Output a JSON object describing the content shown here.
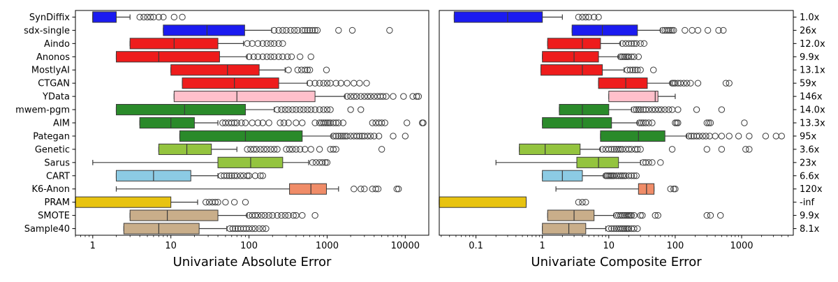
{
  "chart_data": [
    {
      "type": "box",
      "orientation": "horizontal",
      "xscale": "log",
      "xlim": [
        0.6,
        20000
      ],
      "xticks": [
        1,
        10,
        100,
        1000,
        10000
      ],
      "xticklabels": [
        "1",
        "10",
        "100",
        "1000",
        "10000"
      ],
      "xlabel": "Univariate Absolute Error",
      "grid": false,
      "categories": [
        "SynDiffix",
        "sdx-single",
        "Aindo",
        "Anonos",
        "MostlyAI",
        "CTGAN",
        "YData",
        "mwem-pgm",
        "AIM",
        "Pategan",
        "Genetic",
        "Sarus",
        "CART",
        "K6-Anon",
        "PRAM",
        "SMOTE",
        "Sample40"
      ],
      "colors": [
        "#1b1bf0",
        "#1b1bf0",
        "#ee1c1c",
        "#ee1c1c",
        "#ee1c1c",
        "#ee1c1c",
        "#ffc0cb",
        "#2a8a2a",
        "#2a8a2a",
        "#2a8a2a",
        "#94c43f",
        "#94c43f",
        "#8ccbe4",
        "#f08c68",
        "#e8c310",
        "#c9ae8a",
        "#c9ae8a"
      ],
      "boxes": [
        {
          "whisker_low": 1,
          "q1": 1,
          "median": 1,
          "q3": 2,
          "whisker_high": 3,
          "outliers": [
            4,
            4.5,
            5,
            5.5,
            6,
            7,
            8,
            11,
            14
          ]
        },
        {
          "whisker_low": 8,
          "q1": 8,
          "median": 29,
          "q3": 88,
          "whisker_high": 195,
          "outliers": [
            210,
            240,
            270,
            300,
            340,
            380,
            420,
            480,
            520,
            560,
            600,
            650,
            700,
            750,
            1400,
            2100,
            6300
          ]
        },
        {
          "whisker_low": 3,
          "q1": 3,
          "median": 11,
          "q3": 40,
          "whisker_high": 85,
          "outliers": [
            95,
            110,
            130,
            150,
            170,
            190,
            210,
            240,
            270
          ]
        },
        {
          "whisker_low": 2,
          "q1": 2,
          "median": 7,
          "q3": 42,
          "whisker_high": 95,
          "outliers": [
            100,
            115,
            130,
            150,
            170,
            190,
            210,
            240,
            270,
            310,
            350,
            450,
            620
          ]
        },
        {
          "whisker_low": 10,
          "q1": 10,
          "median": 53,
          "q3": 135,
          "whisker_high": 290,
          "outliers": [
            320,
            420,
            470,
            520,
            560,
            600,
            980
          ]
        },
        {
          "whisker_low": 14,
          "q1": 14,
          "median": 65,
          "q3": 240,
          "whisker_high": 560,
          "outliers": [
            600,
            700,
            800,
            900,
            1000,
            1100,
            1300,
            1500,
            1800,
            2200,
            2600,
            3200
          ]
        },
        {
          "whisker_low": 11,
          "q1": 11,
          "median": 70,
          "q3": 700,
          "whisker_high": 1700,
          "outliers": [
            1800,
            2000,
            2200,
            2400,
            2700,
            3000,
            3300,
            3600,
            4000,
            4400,
            4800,
            5200,
            5700,
            7000,
            9500,
            12500,
            14000,
            14800
          ]
        },
        {
          "whisker_low": 2,
          "q1": 2,
          "median": 15,
          "q3": 90,
          "whisker_high": 210,
          "outliers": [
            230,
            260,
            290,
            320,
            360,
            400,
            450,
            500,
            560,
            620,
            700,
            800,
            900,
            1000,
            1100,
            2000,
            2700
          ]
        },
        {
          "whisker_low": 4,
          "q1": 4,
          "median": 10,
          "q3": 20,
          "whisker_high": 40,
          "outliers": [
            46,
            50,
            55,
            60,
            65,
            70,
            80,
            90,
            110,
            130,
            150,
            180,
            250,
            280,
            320,
            400,
            480,
            700,
            800,
            850,
            900,
            950,
            1000,
            1050,
            1100,
            1200,
            1300,
            1400,
            1600,
            3800,
            4200,
            4600,
            5000,
            5500,
            10500,
            16500,
            17000
          ]
        },
        {
          "whisker_low": 13,
          "q1": 13,
          "median": 90,
          "q3": 480,
          "whisker_high": 1150,
          "outliers": [
            1200,
            1300,
            1400,
            1500,
            1600,
            1700,
            1800,
            2000,
            2200,
            2400,
            2600,
            2800,
            3000,
            3300,
            3600,
            4000,
            4600,
            7000,
            10000
          ]
        },
        {
          "whisker_low": 7,
          "q1": 7,
          "median": 16,
          "q3": 33,
          "whisker_high": 70,
          "outliers": [
            95,
            105,
            115,
            125,
            140,
            155,
            170,
            190,
            210,
            230,
            300,
            330,
            360,
            400,
            450,
            520,
            620,
            800,
            1100,
            1200,
            1300,
            5000
          ]
        },
        {
          "whisker_low": 1,
          "q1": 40,
          "median": 105,
          "q3": 270,
          "whisker_high": 580,
          "outliers": [
            650,
            720,
            800,
            870,
            950,
            1000
          ]
        },
        {
          "whisker_low": 2,
          "q1": 2,
          "median": 6,
          "q3": 18,
          "whisker_high": 40,
          "outliers": [
            44,
            48,
            52,
            56,
            60,
            65,
            70,
            78,
            85,
            95,
            100,
            120,
            140,
            150
          ]
        },
        {
          "whisker_low": 2,
          "q1": 330,
          "median": 620,
          "q3": 980,
          "whisker_high": 1400,
          "outliers": [
            2200,
            2700,
            3000,
            3800,
            4200,
            4500,
            7800,
            8200
          ]
        },
        {
          "whisker_low": 0.6,
          "q1": 0.6,
          "median": 0.6,
          "q3": 10,
          "whisker_high": 22,
          "outliers": [
            28,
            31,
            34,
            37,
            40,
            50,
            65,
            90
          ]
        },
        {
          "whisker_low": 3,
          "q1": 3,
          "median": 9,
          "q3": 40,
          "whisker_high": 95,
          "outliers": [
            100,
            110,
            120,
            130,
            145,
            160,
            180,
            200,
            230,
            260,
            290,
            320,
            370,
            400,
            480,
            700
          ]
        },
        {
          "whisker_low": 2.5,
          "q1": 2.5,
          "median": 7,
          "q3": 23,
          "whisker_high": 52,
          "outliers": [
            57,
            62,
            67,
            72,
            78,
            85,
            92,
            100,
            110,
            120,
            135,
            150,
            165
          ]
        }
      ]
    },
    {
      "type": "box",
      "orientation": "horizontal",
      "xscale": "log",
      "xlim": [
        0.028,
        6000
      ],
      "xticks": [
        0.1,
        1,
        10,
        100,
        1000
      ],
      "xticklabels": [
        "0.1",
        "1",
        "10",
        "100",
        "1000"
      ],
      "xlabel": "Univariate Composite Error",
      "grid": false,
      "right_labels": [
        "1.0x",
        "26x",
        "12.0x",
        "9.9x",
        "13.1x",
        "59x",
        "146x",
        "14.0x",
        "13.3x",
        "95x",
        "3.6x",
        "23x",
        "6.6x",
        "120x",
        "-inf",
        "9.9x",
        "8.1x"
      ],
      "boxes": [
        {
          "whisker_low": 0.047,
          "q1": 0.047,
          "median": 0.3,
          "q3": 1,
          "whisker_high": 2,
          "outliers": [
            3.5,
            4,
            4.5,
            5,
            6,
            7
          ]
        },
        {
          "whisker_low": 2.8,
          "q1": 2.8,
          "median": 8,
          "q3": 27,
          "whisker_high": 60,
          "outliers": [
            65,
            70,
            75,
            80,
            85,
            90,
            95,
            140,
            180,
            220,
            310,
            450,
            530
          ]
        },
        {
          "whisker_low": 1.2,
          "q1": 1.2,
          "median": 4,
          "q3": 7.5,
          "whisker_high": 15,
          "outliers": [
            16,
            18,
            20,
            22,
            24,
            26,
            30,
            34
          ]
        },
        {
          "whisker_low": 1,
          "q1": 1,
          "median": 3,
          "q3": 7,
          "whisker_high": 14,
          "outliers": [
            15,
            16,
            17,
            18,
            19,
            20,
            22,
            24,
            28
          ]
        },
        {
          "whisker_low": 0.95,
          "q1": 0.95,
          "median": 4,
          "q3": 8,
          "whisker_high": 17,
          "outliers": [
            19,
            21,
            23,
            25,
            27,
            30,
            47
          ]
        },
        {
          "whisker_low": 7,
          "q1": 7,
          "median": 18,
          "q3": 38,
          "whisker_high": 85,
          "outliers": [
            90,
            95,
            100,
            110,
            120,
            135,
            150,
            170,
            220,
            580,
            650
          ]
        },
        {
          "whisker_low": 10,
          "q1": 10,
          "median": 50,
          "q3": 55,
          "whisker_high": 100,
          "outliers": []
        },
        {
          "whisker_low": 1.8,
          "q1": 1.8,
          "median": 4,
          "q3": 10,
          "whisker_high": 22,
          "outliers": [
            24,
            26,
            28,
            30,
            33,
            36,
            40,
            45,
            50,
            56,
            62,
            70,
            80,
            90,
            110,
            210,
            500
          ]
        },
        {
          "whisker_low": 1,
          "q1": 1,
          "median": 4,
          "q3": 11,
          "whisker_high": 27,
          "outliers": [
            29,
            31,
            33,
            36,
            40,
            45,
            100,
            105,
            110,
            300,
            320,
            340,
            1100
          ]
        },
        {
          "whisker_low": 7.5,
          "q1": 7.5,
          "median": 28,
          "q3": 70,
          "whisker_high": 150,
          "outliers": [
            160,
            175,
            190,
            210,
            230,
            260,
            290,
            330,
            400,
            500,
            650,
            900,
            1300,
            2300,
            3300,
            4000
          ]
        },
        {
          "whisker_low": 0.45,
          "q1": 0.45,
          "median": 1.1,
          "q3": 3.7,
          "whisker_high": 7.5,
          "outliers": [
            8,
            9,
            10,
            11,
            12,
            13,
            14,
            15,
            16,
            18,
            20,
            22,
            25,
            27,
            30,
            90,
            300,
            500,
            1150,
            1300
          ]
        },
        {
          "whisker_low": 0.2,
          "q1": 3.3,
          "median": 7,
          "q3": 14,
          "whisker_high": 30,
          "outliers": [
            33,
            36,
            40,
            45,
            60
          ]
        },
        {
          "whisker_low": 1,
          "q1": 1,
          "median": 2,
          "q3": 4,
          "whisker_high": 8.5,
          "outliers": [
            9,
            9.5,
            10,
            10.5,
            11,
            11.5,
            12,
            13,
            14,
            15,
            16,
            17,
            18,
            20,
            22,
            24,
            26
          ]
        },
        {
          "whisker_low": 1.6,
          "q1": 28,
          "median": 37,
          "q3": 48,
          "whisker_high": 48,
          "outliers": [
            85,
            95,
            100
          ]
        },
        {
          "whisker_low": 0.028,
          "q1": 0.028,
          "median": 0.028,
          "q3": 0.57,
          "whisker_high": 0.57,
          "outliers": [
            3.5,
            4,
            4.5
          ]
        },
        {
          "whisker_low": 1.2,
          "q1": 1.2,
          "median": 3,
          "q3": 6,
          "whisker_high": 12,
          "outliers": [
            13,
            14,
            15,
            16,
            17,
            18,
            19,
            20,
            21,
            22,
            24,
            30,
            32,
            50,
            55,
            300,
            340,
            480
          ]
        },
        {
          "whisker_low": 1,
          "q1": 1,
          "median": 2.5,
          "q3": 4.5,
          "whisker_high": 9,
          "outliers": [
            10,
            11,
            12,
            13,
            14,
            15,
            16,
            17,
            18,
            19,
            20,
            22,
            24,
            27
          ]
        }
      ]
    }
  ]
}
